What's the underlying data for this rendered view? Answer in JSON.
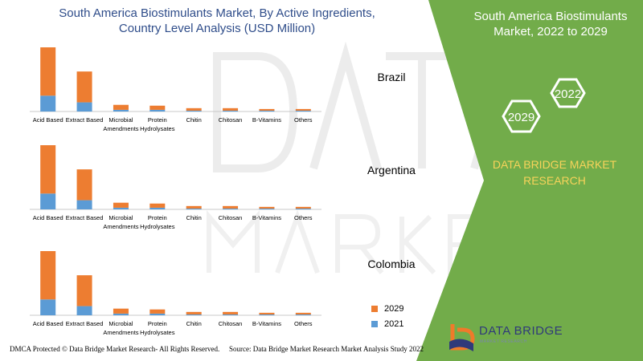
{
  "title_line1": "South America Biostimulants Market, By Active Ingredients,",
  "title_line2": "Country Level Analysis (USD Million)",
  "side_title_line1": "South America Biostimulants",
  "side_title_line2": "Market, 2022 to 2029",
  "hex_year_a": "2022",
  "hex_year_b": "2029",
  "side_research_line1": "DATA BRIDGE MARKET",
  "side_research_line2": "RESEARCH",
  "footer_left": "DMCA Protected © Data Bridge Market Research- All Rights Reserved.",
  "footer_right": "Source: Data Bridge Market Research Market Analysis Study 2022",
  "logo_text": "DATA BRIDGE",
  "logo_sub": "MARKET RESEARCH",
  "colors": {
    "series_2029": "#ed7d31",
    "series_2021": "#5b9bd5",
    "side_green": "#72ac4a",
    "title_blue": "#2f4d8a",
    "research_yellow": "#f7d35a"
  },
  "chart_data": {
    "type": "bar",
    "stacked": true,
    "title": "South America Biostimulants Market, By Active Ingredients, Country Level Analysis (USD Million)",
    "categories": [
      [
        "Acid Based"
      ],
      [
        "Extract Based"
      ],
      [
        "Microbial",
        "Amendments"
      ],
      [
        "Protein",
        "Hydrolysates"
      ],
      [
        "Chitin"
      ],
      [
        "Chitosan"
      ],
      [
        "B-Vitamins"
      ],
      [
        "Others"
      ]
    ],
    "legend": [
      "2029",
      "2021"
    ],
    "legend_position": "bottom-right",
    "panels": [
      {
        "country": "Brazil",
        "series": [
          {
            "name": "2021",
            "values": [
              19,
              11,
              2,
              2,
              1,
              1,
              1,
              1
            ]
          },
          {
            "name": "2029",
            "values": [
              58,
              37,
              6,
              5,
              3,
              3,
              2,
              2
            ]
          }
        ]
      },
      {
        "country": "Argentina",
        "series": [
          {
            "name": "2021",
            "values": [
              19,
              11,
              2,
              2,
              1,
              1,
              1,
              1
            ]
          },
          {
            "name": "2029",
            "values": [
              58,
              37,
              6,
              5,
              3,
              3,
              2,
              2
            ]
          }
        ]
      },
      {
        "country": "Colombia",
        "series": [
          {
            "name": "2021",
            "values": [
              19,
              11,
              2,
              2,
              1,
              1,
              1,
              1
            ]
          },
          {
            "name": "2029",
            "values": [
              58,
              37,
              6,
              5,
              3,
              3,
              2,
              2
            ]
          }
        ]
      }
    ]
  }
}
